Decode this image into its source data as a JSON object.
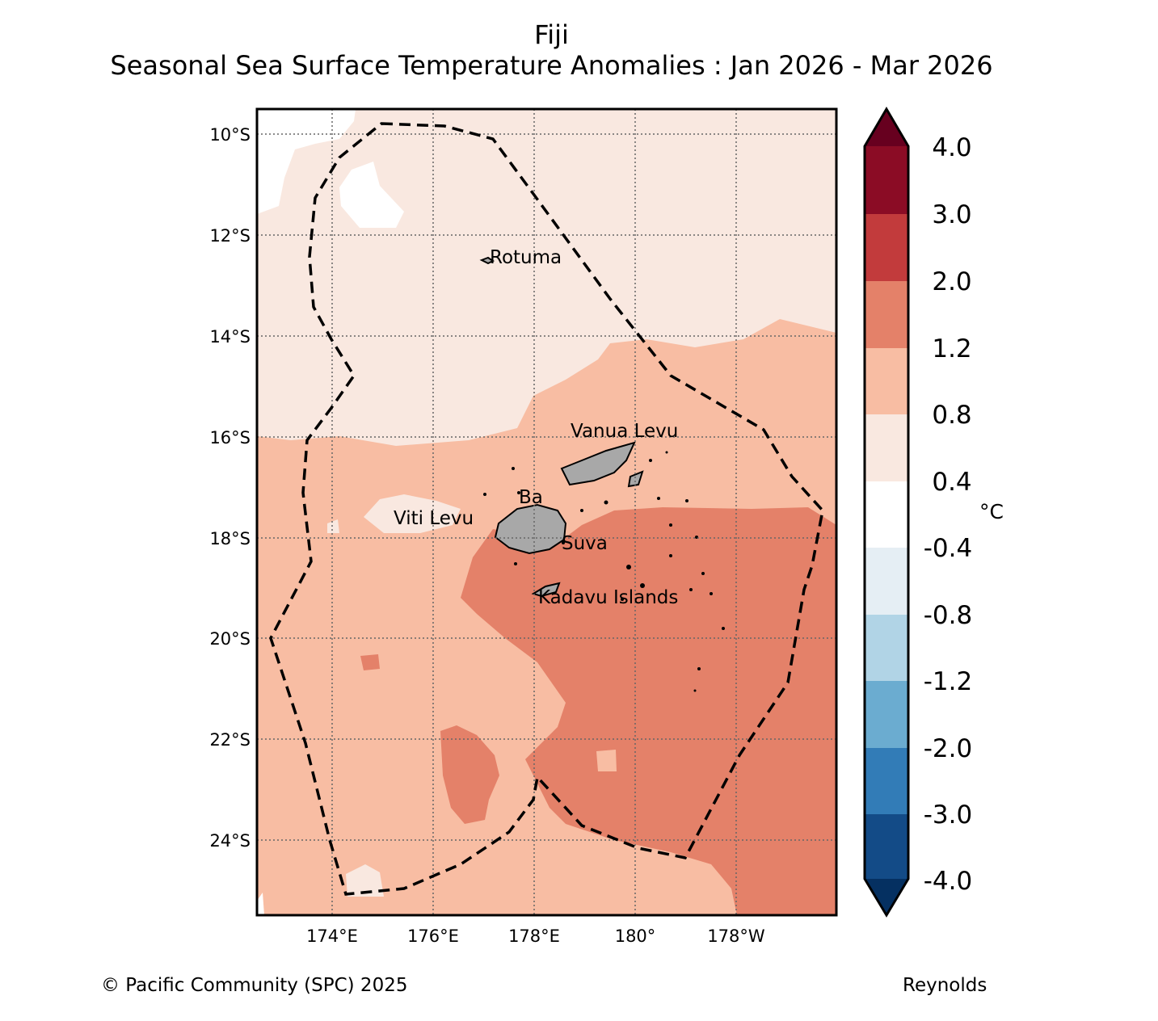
{
  "title": "Fiji",
  "subtitle": "Seasonal Sea Surface Temperature Anomalies : Jan 2026 - Mar 2026",
  "footer": {
    "copyright": "© Pacific Community (SPC) 2025",
    "source": "Reynolds"
  },
  "map": {
    "lat_labels": [
      "10°S",
      "12°S",
      "14°S",
      "16°S",
      "18°S",
      "20°S",
      "22°S",
      "24°S"
    ],
    "lon_labels": [
      "174°E",
      "176°E",
      "178°E",
      "180°",
      "178°W"
    ],
    "place_labels": {
      "rotuma": "Rotuma",
      "vanua_levu": "Vanua Levu",
      "ba": "Ba",
      "viti_levu": "Viti Levu",
      "suva": "Suva",
      "kadavu": "Kadavu Islands"
    },
    "colors": {
      "band_0_4_to_0_8": "#f9e8e0",
      "band_0_8_to_1_2": "#f8bda3",
      "band_1_2_to_2_0": "#e48169",
      "land": "#a8a8a8"
    }
  },
  "colorbar": {
    "unit": "°C",
    "tick_labels": [
      "4.0",
      "3.0",
      "2.0",
      "1.2",
      "0.8",
      "0.4",
      "-0.4",
      "-0.8",
      "-1.2",
      "-2.0",
      "-3.0",
      "-4.0"
    ],
    "colors": [
      "#053061",
      "#134b87",
      "#327cb7",
      "#6bacd0",
      "#b1d4e6",
      "#e5eef4",
      "#ffffff",
      "#f9e8e0",
      "#f8bda3",
      "#e48169",
      "#c23b3c",
      "#8b0c25",
      "#67001f"
    ]
  }
}
